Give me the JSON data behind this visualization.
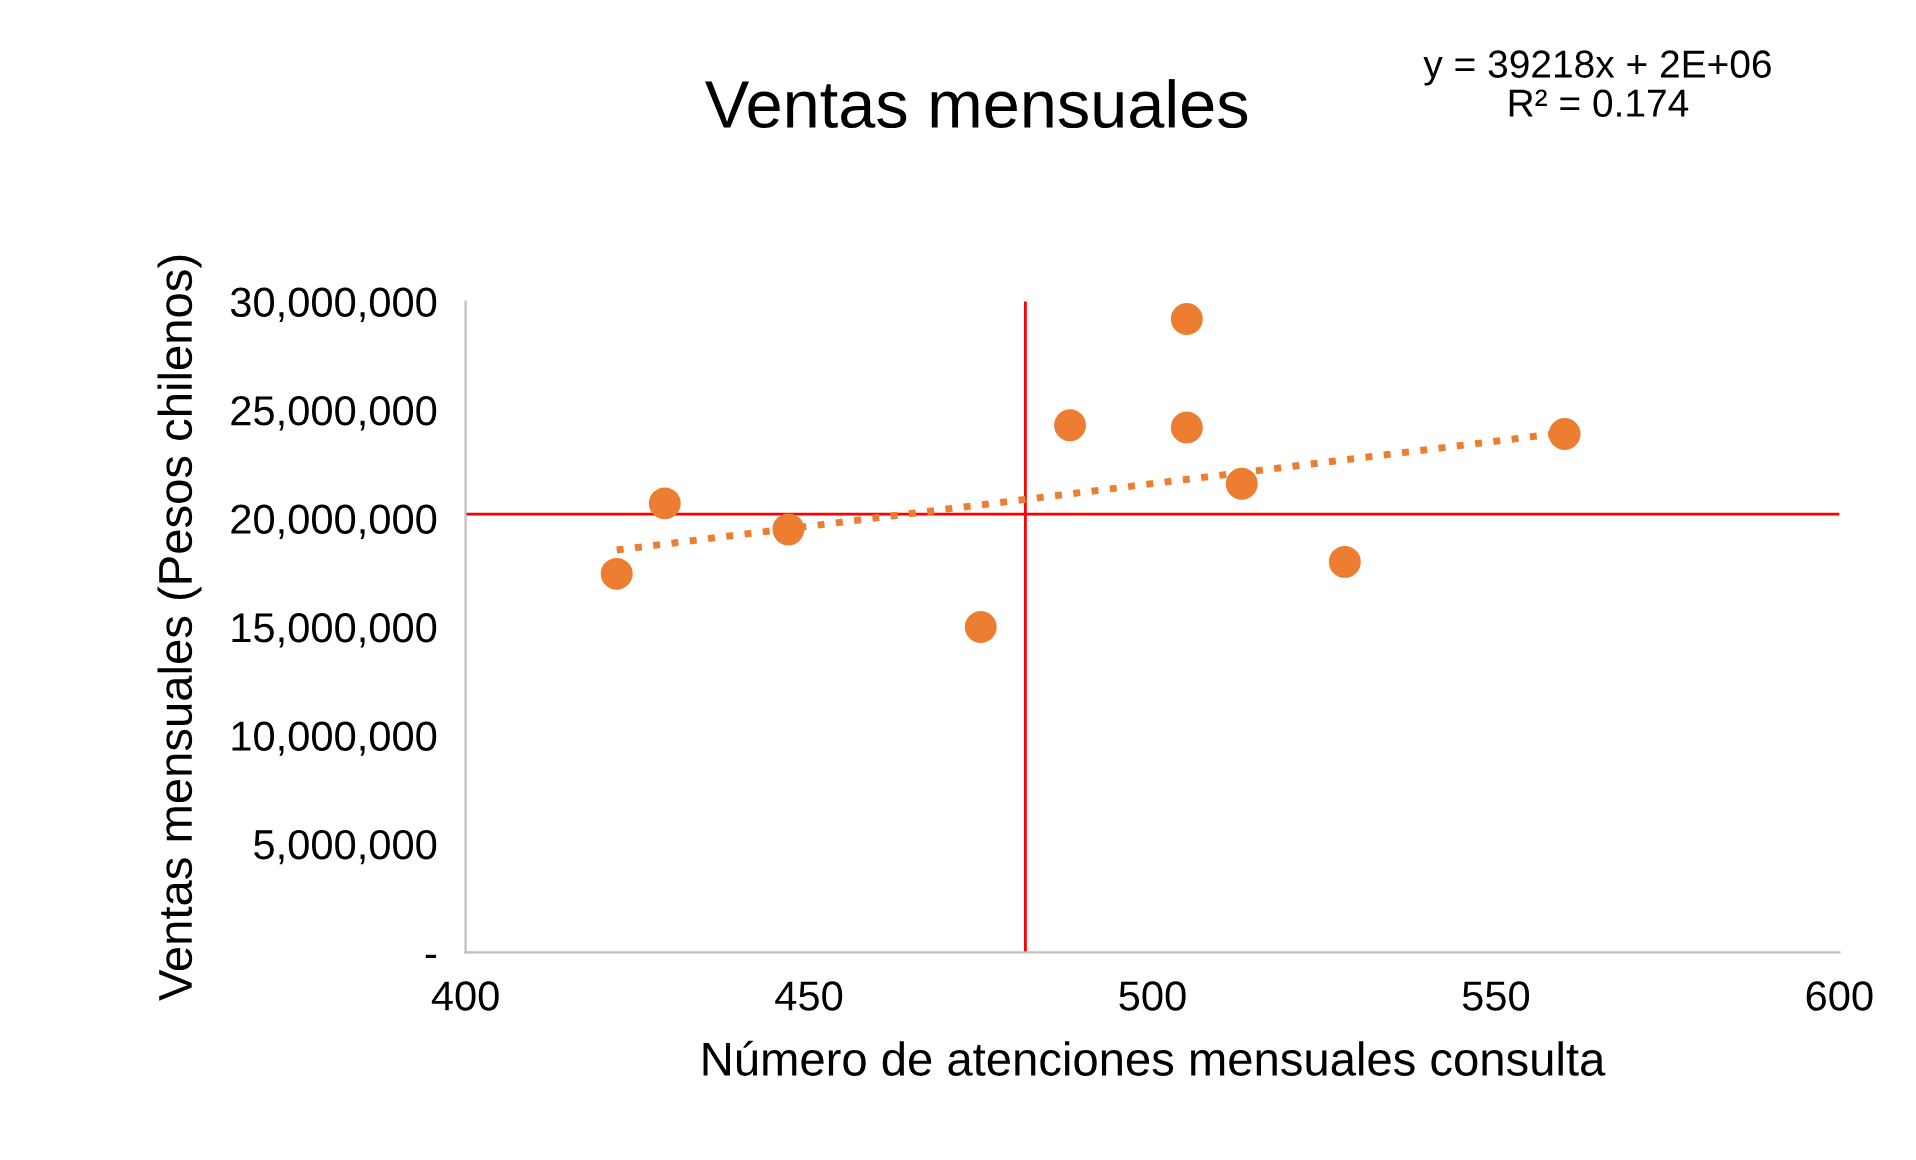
{
  "chart_data": {
    "type": "scatter",
    "title": "Ventas mensuales",
    "xlabel": "Número de atenciones mensuales consulta",
    "ylabel": "Ventas mensuales (Pesos chilenos)",
    "annotations": [
      "y = 39218x + 2E+06\nR² = 0.174"
    ],
    "x": [
      422,
      429,
      447,
      475,
      488,
      505,
      505,
      513,
      528,
      560
    ],
    "series": [
      {
        "color": "#ed7d31",
        "values": [
          17450000,
          20700000,
          19500000,
          15000000,
          24300000,
          29200000,
          24200000,
          21600000,
          18000000,
          23900000
        ]
      },
      {
        "type": "line",
        "color": "#ed7d31",
        "line_style": "dotted",
        "marker": "none",
        "x": [
          422,
          560
        ],
        "values": [
          18550000,
          23960000
        ]
      }
    ],
    "marker": "circle",
    "xlim": [
      400,
      600
    ],
    "xticks": [
      400,
      450,
      500,
      550,
      600
    ],
    "ylim": [
      0,
      30000000
    ],
    "yticks": [
      {
        "value": 0,
        "label": "-"
      },
      {
        "value": 5000000,
        "label": "5,000,000"
      },
      {
        "value": 10000000,
        "label": "10,000,000"
      },
      {
        "value": 15000000,
        "label": "15,000,000"
      },
      {
        "value": 20000000,
        "label": "20,000,000"
      },
      {
        "value": 25000000,
        "label": "25,000,000"
      },
      {
        "value": 30000000,
        "label": "30,000,000"
      }
    ],
    "ref_lines": [
      {
        "axis": "y",
        "value": 20200000,
        "color": "#ff0000"
      },
      {
        "axis": "x",
        "value": 481.5,
        "color": "#ff0000"
      }
    ],
    "grid": false,
    "legend": false
  }
}
